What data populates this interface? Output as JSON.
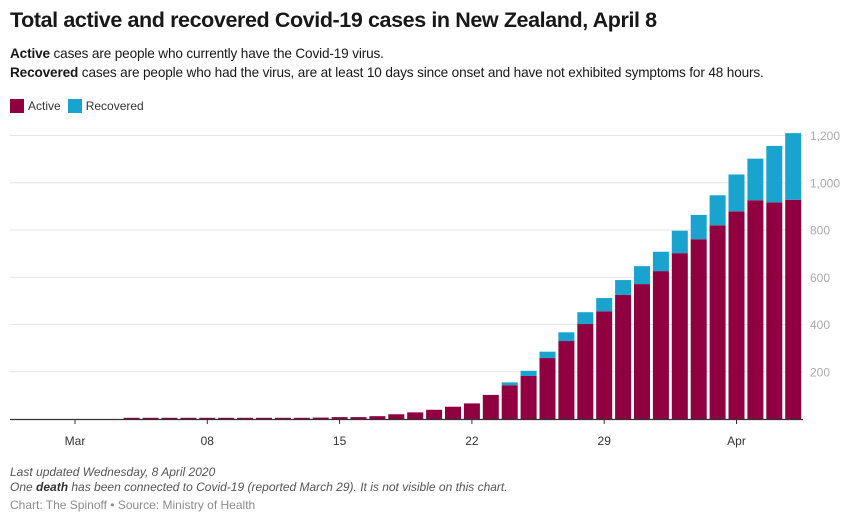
{
  "header": {
    "title": "Total active and recovered Covid-19 cases in New Zealand, April 8",
    "desc_line1_bold": "Active",
    "desc_line1_rest": " cases are people who currently have the Covid-19 virus.",
    "desc_line2_bold": "Recovered",
    "desc_line2_rest": " cases are people who had the virus, are at least 10 days since onset and have not exhibited symptoms for 48 hours."
  },
  "footer": {
    "updated": "Last updated Wednesday, 8 April 2020",
    "note_pre": "One ",
    "note_bold": "death",
    "note_post": " has been connected to Covid-19 (reported March 29). It is not visible on this chart.",
    "credit": "Chart: The Spinoff • Source: Ministry of Health"
  },
  "colors": {
    "active": "#900040",
    "recovered": "#1aa3cf",
    "grid": "#e6e6e6",
    "axis": "#333333",
    "tick_label": "#333333",
    "y_label": "#aaaaaa"
  },
  "chart_data": {
    "type": "bar",
    "stacked": true,
    "title": "Total active and recovered Covid-19 cases in New Zealand, April 8",
    "xlabel": "",
    "ylabel": "",
    "ylim": [
      0,
      1200
    ],
    "grid": true,
    "legend_position": "top-left",
    "legend": [
      "Active",
      "Recovered"
    ],
    "y_ticks": [
      200,
      400,
      600,
      800,
      1000,
      1200
    ],
    "y_tick_labels": [
      "200",
      "400",
      "600",
      "800",
      "1,000",
      "1,200"
    ],
    "x_ticks": [
      {
        "day": 0,
        "label": "Mar"
      },
      {
        "day": 7,
        "label": "08"
      },
      {
        "day": 14,
        "label": "15"
      },
      {
        "day": 21,
        "label": "22"
      },
      {
        "day": 28,
        "label": "29"
      },
      {
        "day": 35,
        "label": "Apr"
      }
    ],
    "x_range_days": [
      -3.4,
      38.5
    ],
    "categories": [
      "Mar 4",
      "Mar 5",
      "Mar 6",
      "Mar 7",
      "Mar 8",
      "Mar 9",
      "Mar 10",
      "Mar 11",
      "Mar 12",
      "Mar 13",
      "Mar 14",
      "Mar 15",
      "Mar 16",
      "Mar 17",
      "Mar 18",
      "Mar 19",
      "Mar 20",
      "Mar 21",
      "Mar 22",
      "Mar 23",
      "Mar 24",
      "Mar 25",
      "Mar 26",
      "Mar 27",
      "Mar 28",
      "Mar 29",
      "Mar 30",
      "Mar 31",
      "Apr 1",
      "Apr 2",
      "Apr 3",
      "Apr 4",
      "Apr 5",
      "Apr 6",
      "Apr 7",
      "Apr 8"
    ],
    "day_index_start": 3,
    "series": [
      {
        "name": "Active",
        "values": [
          3,
          3,
          4,
          4,
          4,
          4,
          4,
          4,
          4,
          5,
          6,
          8,
          8,
          12,
          20,
          28,
          39,
          52,
          66,
          102,
          143,
          182,
          258,
          330,
          402,
          456,
          525,
          571,
          626,
          702,
          761,
          820,
          879,
          926,
          917,
          928
        ]
      },
      {
        "name": "Recovered",
        "values": [
          0,
          0,
          0,
          0,
          0,
          0,
          0,
          0,
          0,
          0,
          0,
          0,
          0,
          0,
          0,
          0,
          0,
          0,
          0,
          0,
          12,
          22,
          27,
          37,
          50,
          56,
          63,
          76,
          82,
          95,
          103,
          127,
          156,
          176,
          239,
          282
        ]
      }
    ]
  }
}
